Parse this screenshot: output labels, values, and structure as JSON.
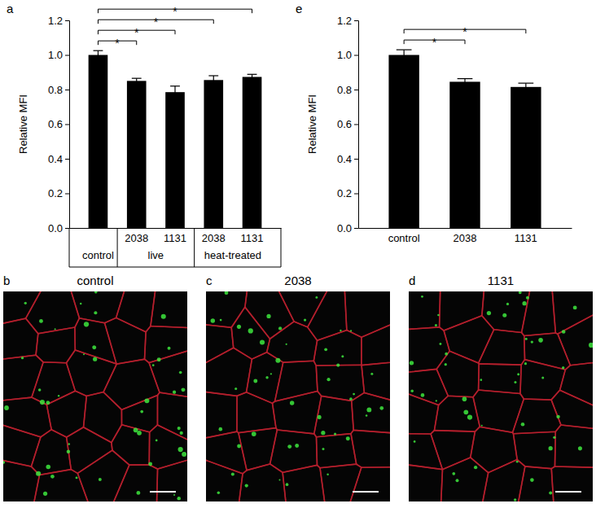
{
  "chart_data": [
    {
      "type": "bar",
      "panel": "a",
      "y_label": "Relative MFI",
      "categories": [
        null,
        "2038",
        "1131",
        "2038",
        "1131"
      ],
      "groups": [
        {
          "label": "control",
          "start": 0,
          "end": 0
        },
        {
          "label": "live",
          "start": 1,
          "end": 2
        },
        {
          "label": "heat-treated",
          "start": 3,
          "end": 4
        }
      ],
      "values": [
        1.0,
        0.85,
        0.785,
        0.855,
        0.873
      ],
      "errors": [
        0.025,
        0.015,
        0.035,
        0.025,
        0.015
      ],
      "color": "#000000",
      "ylim": [
        0,
        1.2
      ],
      "yticks": [
        {
          "value": 0,
          "label": "0.0"
        },
        0.2,
        0.4,
        0.6,
        0.8,
        {
          "value": 1,
          "label": "1.0"
        },
        1.2
      ],
      "significance": [
        {
          "from": 0,
          "to": 1,
          "label": "*"
        },
        {
          "from": 0,
          "to": 2,
          "label": "*"
        },
        {
          "from": 0,
          "to": 3,
          "label": "*"
        },
        {
          "from": 0,
          "to": 4,
          "label": "*"
        }
      ]
    },
    {
      "type": "bar",
      "panel": "e",
      "y_label": "Relative MFI",
      "categories": [
        "control",
        "2038",
        "1131"
      ],
      "values": [
        1.0,
        0.845,
        0.815
      ],
      "errors": [
        0.03,
        0.018,
        0.022
      ],
      "color": "#000000",
      "ylim": [
        0,
        1.2
      ],
      "yticks": [
        {
          "value": 0,
          "label": "0.0"
        },
        0.2,
        0.4,
        0.6,
        0.8,
        {
          "value": 1,
          "label": "1.0"
        },
        1.2
      ],
      "significance": [
        {
          "from": 0,
          "to": 1,
          "label": "*"
        },
        {
          "from": 0,
          "to": 2,
          "label": "*"
        }
      ]
    }
  ],
  "images": [
    {
      "panel": "b",
      "label": "control"
    },
    {
      "panel": "c",
      "label": "2038"
    },
    {
      "panel": "d",
      "label": "1131"
    }
  ]
}
